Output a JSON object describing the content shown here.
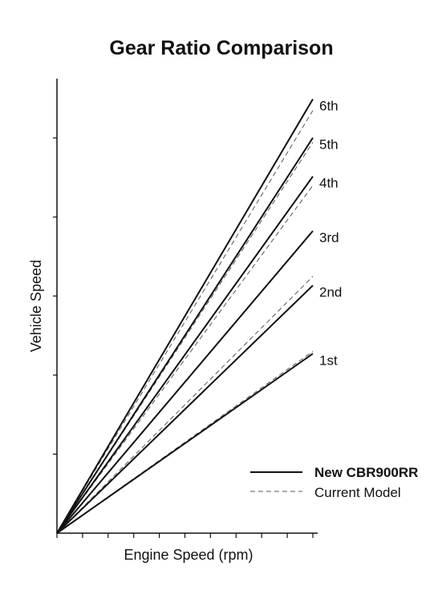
{
  "chart_data": {
    "type": "line",
    "title": "Gear Ratio Comparison",
    "xlabel": "Engine Speed (rpm)",
    "ylabel": "Vehicle Speed",
    "xlim": [
      0,
      1
    ],
    "ylim": [
      0,
      1
    ],
    "x_ticks": 11,
    "y_ticks": 6,
    "grid": false,
    "legend_position": "bottom-right",
    "series": [
      {
        "name": "New CBR900RR",
        "style": "solid",
        "color": "#111111",
        "lines": [
          {
            "label": "1st",
            "points": [
              [
                0,
                0
              ],
              [
                1,
                0.395
              ]
            ]
          },
          {
            "label": "2nd",
            "points": [
              [
                0,
                0
              ],
              [
                1,
                0.545
              ]
            ]
          },
          {
            "label": "3rd",
            "points": [
              [
                0,
                0
              ],
              [
                1,
                0.665
              ]
            ]
          },
          {
            "label": "4th",
            "points": [
              [
                0,
                0
              ],
              [
                1,
                0.785
              ]
            ]
          },
          {
            "label": "5th",
            "points": [
              [
                0,
                0
              ],
              [
                1,
                0.87
              ]
            ]
          },
          {
            "label": "6th",
            "points": [
              [
                0,
                0
              ],
              [
                1,
                0.955
              ]
            ]
          }
        ]
      },
      {
        "name": "Current Model",
        "style": "dashed",
        "color": "#555555",
        "lines": [
          {
            "label": "1st",
            "points": [
              [
                0,
                0
              ],
              [
                1,
                0.4
              ]
            ]
          },
          {
            "label": "2nd",
            "points": [
              [
                0,
                0
              ],
              [
                1,
                0.565
              ]
            ]
          },
          {
            "label": "4th",
            "points": [
              [
                0,
                0
              ],
              [
                1,
                0.765
              ]
            ]
          },
          {
            "label": "5th",
            "points": [
              [
                0,
                0
              ],
              [
                1,
                0.86
              ]
            ]
          },
          {
            "label": "6th",
            "points": [
              [
                0,
                0
              ],
              [
                1,
                0.93
              ]
            ]
          }
        ]
      }
    ],
    "gear_labels": [
      {
        "text": "6th",
        "y": 0.955
      },
      {
        "text": "5th",
        "y": 0.87
      },
      {
        "text": "4th",
        "y": 0.785
      },
      {
        "text": "3rd",
        "y": 0.665
      },
      {
        "text": "2nd",
        "y": 0.545
      },
      {
        "text": "1st",
        "y": 0.395
      }
    ]
  }
}
